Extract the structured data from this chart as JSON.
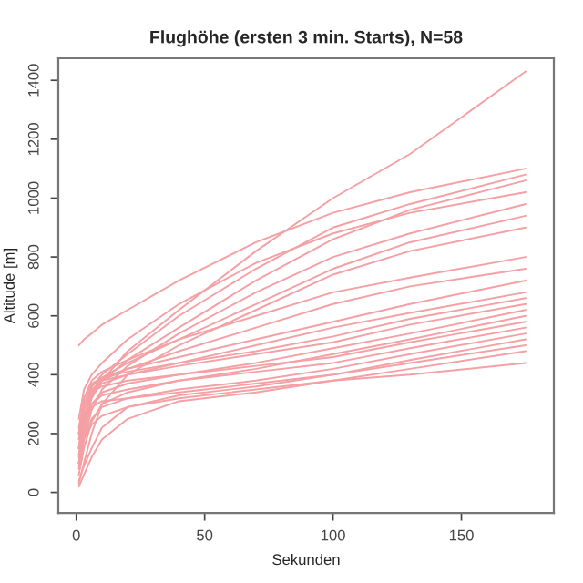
{
  "chart_data": {
    "type": "line",
    "title": "Flughöhe (ersten 3 min. Starts), N=58",
    "xlabel": "Sekunden",
    "ylabel": "Altitude [m]",
    "x": [
      1,
      3,
      6,
      10,
      20,
      40,
      70,
      100,
      130,
      175
    ],
    "xlim": [
      -7,
      186
    ],
    "ylim": [
      -70,
      1475
    ],
    "xticks": [
      0,
      50,
      100,
      150
    ],
    "yticks": [
      0,
      200,
      400,
      600,
      800,
      1000,
      1200,
      1400
    ],
    "grid": false,
    "series": [
      {
        "color": "#f4a0a4",
        "values": [
          150,
          250,
          330,
          380,
          480,
          620,
          820,
          1000,
          1150,
          1430
        ]
      },
      {
        "color": "#f4a0a4",
        "values": [
          500,
          520,
          540,
          570,
          620,
          720,
          850,
          950,
          1020,
          1100
        ]
      },
      {
        "color": "#f4a0a4",
        "values": [
          200,
          300,
          360,
          400,
          470,
          600,
          760,
          900,
          980,
          1080
        ]
      },
      {
        "color": "#f4a0a4",
        "values": [
          100,
          220,
          320,
          380,
          450,
          560,
          720,
          860,
          960,
          1060
        ]
      },
      {
        "color": "#f4a0a4",
        "values": [
          250,
          350,
          400,
          440,
          520,
          640,
          780,
          880,
          950,
          1020
        ]
      },
      {
        "color": "#f4a0a4",
        "values": [
          80,
          180,
          280,
          350,
          430,
          540,
          680,
          800,
          880,
          980
        ]
      },
      {
        "color": "#f4a0a4",
        "values": [
          150,
          260,
          340,
          390,
          440,
          520,
          640,
          760,
          850,
          940
        ]
      },
      {
        "color": "#f4a0a4",
        "values": [
          30,
          100,
          200,
          300,
          400,
          500,
          620,
          740,
          820,
          900
        ]
      },
      {
        "color": "#f4a0a4",
        "values": [
          200,
          320,
          380,
          410,
          450,
          520,
          600,
          680,
          730,
          800
        ]
      },
      {
        "color": "#f4a0a4",
        "values": [
          120,
          250,
          340,
          380,
          420,
          480,
          560,
          640,
          700,
          760
        ]
      },
      {
        "color": "#f4a0a4",
        "values": [
          180,
          300,
          360,
          390,
          420,
          460,
          520,
          580,
          640,
          720
        ]
      },
      {
        "color": "#f4a0a4",
        "values": [
          100,
          220,
          330,
          370,
          400,
          440,
          500,
          560,
          610,
          680
        ]
      },
      {
        "color": "#f4a0a4",
        "values": [
          220,
          320,
          370,
          390,
          410,
          440,
          480,
          530,
          590,
          660
        ]
      },
      {
        "color": "#f4a0a4",
        "values": [
          150,
          280,
          350,
          380,
          400,
          430,
          470,
          510,
          570,
          640
        ]
      },
      {
        "color": "#f4a0a4",
        "values": [
          100,
          200,
          300,
          340,
          370,
          400,
          440,
          490,
          540,
          620
        ]
      },
      {
        "color": "#f4a0a4",
        "values": [
          60,
          150,
          240,
          300,
          340,
          380,
          420,
          470,
          520,
          600
        ]
      },
      {
        "color": "#f4a0a4",
        "values": [
          200,
          300,
          340,
          360,
          380,
          400,
          430,
          460,
          510,
          580
        ]
      },
      {
        "color": "#f4a0a4",
        "values": [
          130,
          240,
          300,
          330,
          350,
          380,
          410,
          440,
          490,
          560
        ]
      },
      {
        "color": "#f4a0a4",
        "values": [
          90,
          180,
          250,
          290,
          320,
          350,
          380,
          420,
          470,
          540
        ]
      },
      {
        "color": "#f4a0a4",
        "values": [
          40,
          90,
          150,
          220,
          290,
          330,
          360,
          400,
          450,
          520
        ]
      },
      {
        "color": "#f4a0a4",
        "values": [
          150,
          250,
          290,
          310,
          320,
          340,
          370,
          400,
          440,
          500
        ]
      },
      {
        "color": "#f4a0a4",
        "values": [
          20,
          60,
          120,
          180,
          250,
          310,
          340,
          380,
          420,
          480
        ]
      },
      {
        "color": "#f4a0a4",
        "values": [
          100,
          180,
          230,
          260,
          290,
          320,
          350,
          380,
          400,
          440
        ]
      }
    ]
  }
}
